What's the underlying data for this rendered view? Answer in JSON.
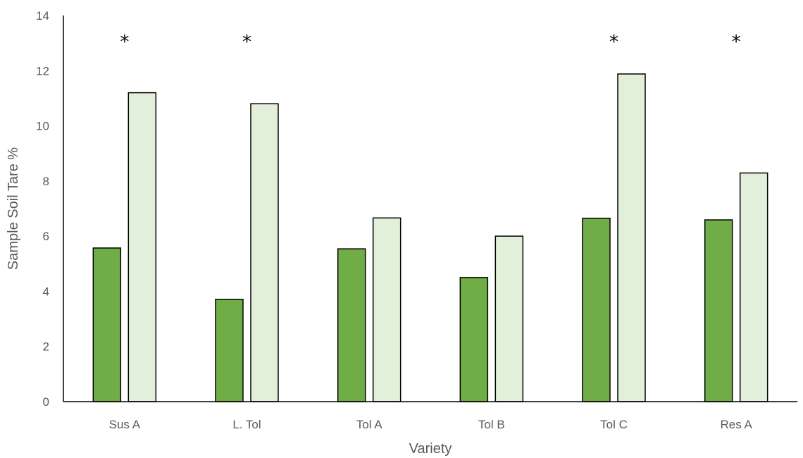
{
  "chart_data": {
    "type": "bar",
    "title": "",
    "xlabel": "Variety",
    "ylabel": "Sample Soil Tare %",
    "ylim": [
      0,
      14
    ],
    "yticks": [
      0,
      2,
      4,
      6,
      8,
      10,
      12,
      14
    ],
    "grid": false,
    "legend": "none",
    "categories": [
      "Sus A",
      "L. Tol",
      "Tol A",
      "Tol B",
      "Tol C",
      "Res A"
    ],
    "series": [
      {
        "values": [
          5.57,
          3.71,
          5.54,
          4.5,
          6.65,
          6.59
        ],
        "color": "#70ad47",
        "stroke": "#000000"
      },
      {
        "values": [
          11.2,
          10.8,
          6.66,
          6.0,
          11.88,
          8.29
        ],
        "color": "#e2efda",
        "stroke": "#000000"
      }
    ],
    "significance_marks": [
      "*",
      "*",
      "",
      "",
      "*",
      "*"
    ],
    "colors": {
      "axis": "#000000",
      "text": "#595959"
    }
  }
}
